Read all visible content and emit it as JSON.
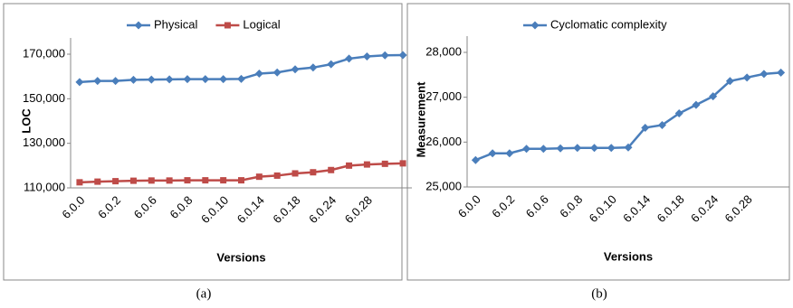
{
  "chart_data": [
    {
      "type": "line",
      "caption": "(a)",
      "ylabel": "LOC",
      "xlabel": "Versions",
      "categories": [
        "6.0.0",
        null,
        "6.0.2",
        null,
        "6.0.6",
        null,
        "6.0.8",
        null,
        "6.0.10",
        null,
        "6.0.14",
        null,
        "6.0.18",
        null,
        "6.0.24",
        null,
        "6.0.28",
        null,
        null
      ],
      "series": [
        {
          "name": "Physical",
          "color": "#4a7ebb",
          "marker": "diamond",
          "values": [
            157500,
            158000,
            158000,
            158500,
            158600,
            158700,
            158800,
            158800,
            158800,
            158900,
            161300,
            161800,
            163200,
            164000,
            165500,
            168000,
            169000,
            169500,
            169600
          ]
        },
        {
          "name": "Logical",
          "color": "#be4b48",
          "marker": "square",
          "values": [
            112500,
            112800,
            113000,
            113200,
            113300,
            113300,
            113400,
            113400,
            113400,
            113400,
            115000,
            115500,
            116500,
            117000,
            118000,
            120000,
            120500,
            120800,
            121000
          ]
        }
      ],
      "ylim": [
        110000,
        170000
      ],
      "yticks": [
        {
          "value": 110000,
          "label": "110,000"
        },
        {
          "value": 130000,
          "label": "130,000"
        },
        {
          "value": 150000,
          "label": "150,000"
        },
        {
          "value": 170000,
          "label": "170,000"
        }
      ],
      "grid": false
    },
    {
      "type": "line",
      "caption": "(b)",
      "ylabel": "Measurement",
      "xlabel": "Versions",
      "categories": [
        "6.0.0",
        null,
        "6.0.2",
        null,
        "6.0.6",
        null,
        "6.0.8",
        null,
        "6.0.10",
        null,
        "6.0.14",
        null,
        "6.0.18",
        null,
        "6.0.24",
        null,
        "6.0.28",
        null,
        null
      ],
      "series": [
        {
          "name": "Cyclomatic complexity",
          "color": "#4a7ebb",
          "marker": "diamond",
          "values": [
            25600,
            25750,
            25750,
            25850,
            25850,
            25860,
            25870,
            25870,
            25870,
            25880,
            26320,
            26380,
            26640,
            26830,
            27020,
            27360,
            27440,
            27520,
            27550
          ]
        }
      ],
      "ylim": [
        25000,
        28000
      ],
      "yticks": [
        {
          "value": 25000,
          "label": "25,000"
        },
        {
          "value": 26000,
          "label": "26,000"
        },
        {
          "value": 27000,
          "label": "27,000"
        },
        {
          "value": 28000,
          "label": "28,000"
        }
      ],
      "grid": false
    }
  ]
}
